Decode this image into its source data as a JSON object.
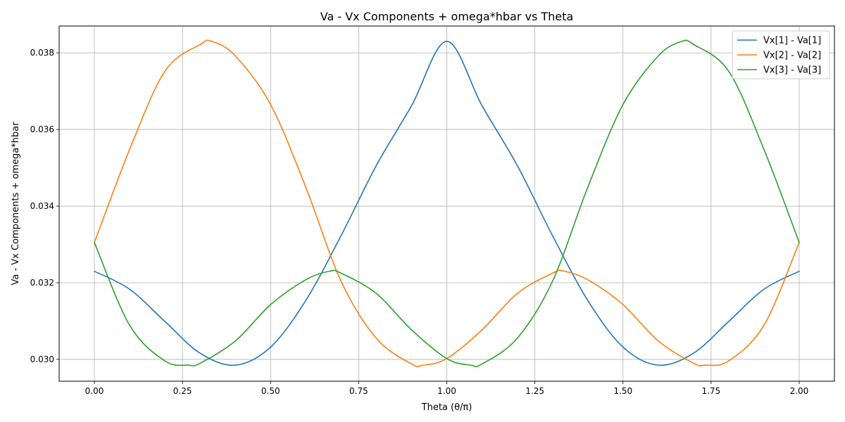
{
  "chart_data": {
    "type": "line",
    "title": "Va - Vx Components + omega*hbar vs Theta",
    "xlabel": "Theta (θ/π)",
    "ylabel": "Va - Vx Components + omega*hbar",
    "xlim": [
      -0.1,
      2.1
    ],
    "ylim": [
      0.02943,
      0.0387
    ],
    "xticks": [
      0.0,
      0.25,
      0.5,
      0.75,
      1.0,
      1.25,
      1.5,
      1.75,
      2.0
    ],
    "xtick_labels": [
      "0.00",
      "0.25",
      "0.50",
      "0.75",
      "1.00",
      "1.25",
      "1.50",
      "1.75",
      "2.00"
    ],
    "yticks": [
      0.03,
      0.032,
      0.034,
      0.036,
      0.038
    ],
    "ytick_labels": [
      "0.030",
      "0.032",
      "0.034",
      "0.036",
      "0.038"
    ],
    "grid": true,
    "legend_position": "upper-right",
    "series": [
      {
        "name": "Vx[1] - Va[1]",
        "color": "#1f77b4",
        "x": [
          0.0,
          0.1,
          0.2,
          0.3,
          0.4,
          0.5,
          0.6,
          0.7,
          0.8,
          0.9,
          1.0,
          1.1,
          1.2,
          1.3,
          1.4,
          1.5,
          1.6,
          1.7,
          1.8,
          1.9,
          2.0
        ],
        "y": [
          0.0323,
          0.03183,
          0.03099,
          0.03016,
          0.02985,
          0.03032,
          0.03154,
          0.03323,
          0.03506,
          0.03662,
          0.0383,
          0.03662,
          0.03506,
          0.03323,
          0.03154,
          0.03032,
          0.02985,
          0.03016,
          0.03099,
          0.03183,
          0.0323
        ]
      },
      {
        "name": "Vx[2] - Va[2]",
        "color": "#ff7f0e",
        "x": [
          0.0,
          0.1,
          0.2,
          0.3,
          0.333,
          0.4,
          0.5,
          0.6,
          0.7,
          0.8,
          0.9,
          0.933,
          1.0,
          1.1,
          1.2,
          1.3,
          1.333,
          1.4,
          1.5,
          1.6,
          1.7,
          1.733,
          1.8,
          1.9,
          2.0
        ],
        "y": [
          0.03305,
          0.03548,
          0.03752,
          0.03822,
          0.0383,
          0.03792,
          0.03665,
          0.03449,
          0.03204,
          0.03055,
          0.02988,
          0.02985,
          0.03002,
          0.03077,
          0.03172,
          0.03225,
          0.0323,
          0.03208,
          0.03143,
          0.03048,
          0.0299,
          0.02985,
          0.02996,
          0.03089,
          0.03305
        ]
      },
      {
        "name": "Vx[3] - Va[3]",
        "color": "#2ca02c",
        "x": [
          0.0,
          0.1,
          0.2,
          0.267,
          0.3,
          0.4,
          0.5,
          0.6,
          0.667,
          0.7,
          0.8,
          0.9,
          1.0,
          1.067,
          1.1,
          1.2,
          1.3,
          1.4,
          1.5,
          1.6,
          1.667,
          1.7,
          1.8,
          1.9,
          2.0
        ],
        "y": [
          0.03305,
          0.03089,
          0.02996,
          0.02985,
          0.0299,
          0.03048,
          0.03143,
          0.03208,
          0.0323,
          0.03225,
          0.03172,
          0.03077,
          0.03002,
          0.02985,
          0.02988,
          0.03055,
          0.03204,
          0.03449,
          0.03665,
          0.03792,
          0.0383,
          0.03822,
          0.03752,
          0.03548,
          0.03305
        ]
      }
    ]
  }
}
